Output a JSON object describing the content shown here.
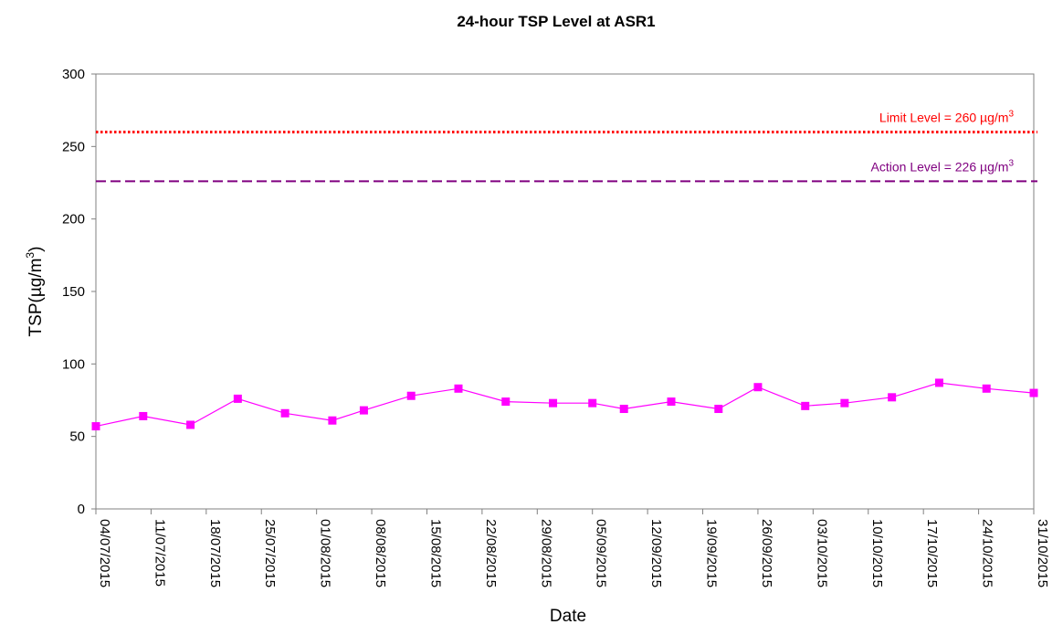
{
  "chart_data": {
    "type": "line",
    "title": "24-hour TSP Level at ASR1",
    "xlabel": "Date",
    "ylabel": "TSP(µg/m3)",
    "ylabel_parts": {
      "base": "TSP(µg/m",
      "sup": "3",
      "close": ")"
    },
    "ylim": [
      0,
      300
    ],
    "yticks": [
      0,
      50,
      100,
      150,
      200,
      250,
      300
    ],
    "xrange": [
      "2015-07-04",
      "2015-10-31"
    ],
    "xtick_labels": [
      "04/07/2015",
      "11/07/2015",
      "18/07/2015",
      "25/07/2015",
      "01/08/2015",
      "08/08/2015",
      "15/08/2015",
      "22/08/2015",
      "29/08/2015",
      "05/09/2015",
      "12/09/2015",
      "19/09/2015",
      "26/09/2015",
      "03/10/2015",
      "10/10/2015",
      "17/10/2015",
      "24/10/2015",
      "31/10/2015"
    ],
    "series": [
      {
        "color": "#ff00ff",
        "marker": "square",
        "x": [
          "2015-07-04",
          "2015-07-10",
          "2015-07-16",
          "2015-07-22",
          "2015-07-28",
          "2015-08-03",
          "2015-08-07",
          "2015-08-13",
          "2015-08-19",
          "2015-08-25",
          "2015-08-31",
          "2015-09-05",
          "2015-09-09",
          "2015-09-15",
          "2015-09-21",
          "2015-09-26",
          "2015-10-02",
          "2015-10-07",
          "2015-10-13",
          "2015-10-19",
          "2015-10-25",
          "2015-10-31"
        ],
        "values": [
          57,
          64,
          58,
          76,
          66,
          61,
          68,
          78,
          83,
          74,
          73,
          73,
          69,
          74,
          69,
          84,
          71,
          73,
          77,
          87,
          83,
          80
        ]
      }
    ],
    "reference_lines": [
      {
        "value": 260,
        "color": "#ff0000",
        "style": "dotted",
        "label": "Limit Level = 260 µg/m",
        "label_sup": "3"
      },
      {
        "value": 226,
        "color": "#800080",
        "style": "dashed",
        "label": "Action Level = 226 µg/m",
        "label_sup": "3"
      }
    ],
    "grid": false,
    "legend": "none"
  }
}
